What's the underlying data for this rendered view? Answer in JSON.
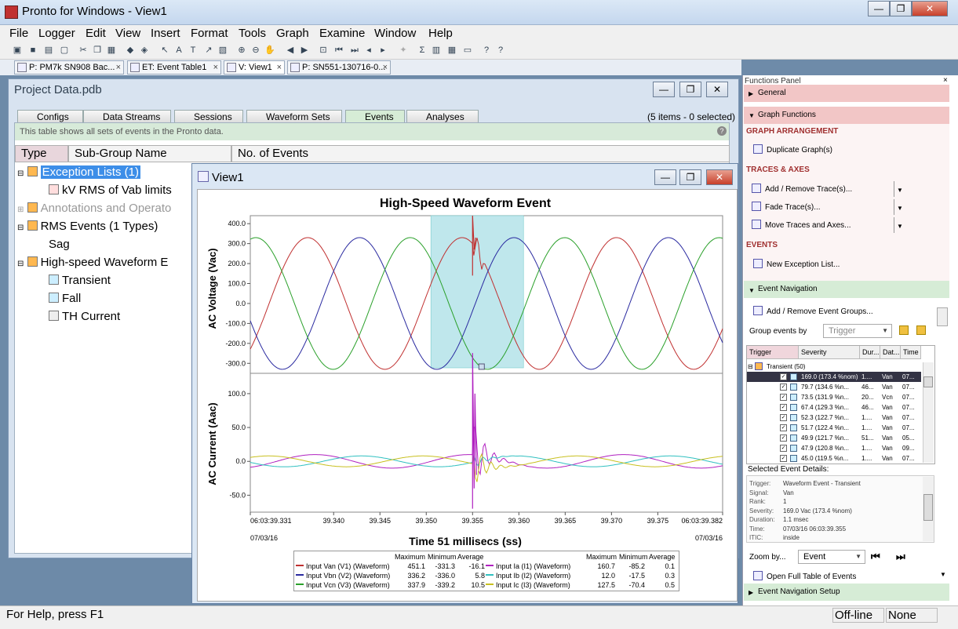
{
  "app": {
    "title": "Pronto for Windows - View1",
    "minimize": "—",
    "maximize": "❐",
    "close": "✕"
  },
  "menu": [
    "File",
    "Logger",
    "Edit",
    "View",
    "Insert",
    "Format",
    "Tools",
    "Graph",
    "Examine",
    "Window",
    "Help"
  ],
  "doc_tabs": [
    {
      "label": "P: PM7k SN908 Bac..."
    },
    {
      "label": "ET: Event Table1"
    },
    {
      "label": "V: View1"
    },
    {
      "label": "P: SN551-130716-0..."
    }
  ],
  "project": {
    "title": "Project Data.pdb",
    "tabs": [
      "Configs",
      "Data Streams",
      "Sessions",
      "Waveform Sets",
      "Events",
      "Analyses"
    ],
    "items_count": "(5 items - 0 selected)",
    "info_text": "This table shows all sets of events in the Pronto data.",
    "columns": [
      "Type",
      "Sub-Group Name",
      "No. of Events"
    ],
    "tree": [
      {
        "label": "Exception Lists (1)",
        "level": 0,
        "selected": true
      },
      {
        "label": "kV RMS of Vab limits",
        "level": 1
      },
      {
        "label": "Annotations and Operato",
        "level": 0,
        "dim": true
      },
      {
        "label": "RMS Events (1 Types)",
        "level": 0
      },
      {
        "label": "Sag",
        "level": 1
      },
      {
        "label": "High-speed Waveform E",
        "level": 0
      },
      {
        "label": "Transient",
        "level": 1
      },
      {
        "label": "Fall",
        "level": 1
      },
      {
        "label": "TH Current",
        "level": 1
      }
    ]
  },
  "view": {
    "title": "View1",
    "chart_title": "High-Speed Waveform Event",
    "x_label": "Time 51 millisecs (ss)",
    "x_ticks": [
      "06:03:39.331",
      "39.340",
      "39.345",
      "39.350",
      "39.355",
      "39.360",
      "39.365",
      "39.370",
      "39.375",
      "06:03:39.382"
    ],
    "x_date_left": "07/03/16",
    "x_date_right": "07/03/16",
    "v_label": "AC Voltage (Vac)",
    "v_ticks": [
      "400.0",
      "300.0",
      "200.0",
      "100.0",
      "0.0",
      "-100.0",
      "-200.0",
      "-300.0"
    ],
    "i_label": "AC Current (Aac)",
    "i_ticks": [
      "100.0",
      "50.0",
      "0.0",
      "-50.0"
    ],
    "legend_header": {
      "max": "Maximum",
      "min": "Minimum",
      "avg": "Average"
    },
    "legend": [
      {
        "name": "Input Van (V1) (Waveform)",
        "max": "451.1",
        "min": "-331.3",
        "avg": "-16.1",
        "color": "#c03030"
      },
      {
        "name": "Input Vbn (V2) (Waveform)",
        "max": "336.2",
        "min": "-336.0",
        "avg": "5.8",
        "color": "#2a2aa0"
      },
      {
        "name": "Input Vcn (V3) (Waveform)",
        "max": "337.9",
        "min": "-339.2",
        "avg": "10.5",
        "color": "#2aa02a"
      },
      {
        "name": "Input Ia (I1) (Waveform)",
        "max": "160.7",
        "min": "-85.2",
        "avg": "0.1",
        "color": "#b020c0"
      },
      {
        "name": "Input Ib (I2) (Waveform)",
        "max": "12.0",
        "min": "-17.5",
        "avg": "0.3",
        "color": "#30c0c0"
      },
      {
        "name": "Input Ic (I3) (Waveform)",
        "max": "127.5",
        "min": "-70.4",
        "avg": "0.5",
        "color": "#c8c020"
      }
    ]
  },
  "chart_data": {
    "type": "line",
    "title": "High-Speed Waveform Event",
    "xlabel": "Time 51 millisecs (ss)",
    "xlim": [
      39.331,
      39.382
    ],
    "event_window": [
      39.3505,
      39.3605
    ],
    "event_time": 39.355,
    "panels": [
      {
        "ylabel": "AC Voltage (Vac)",
        "ylim": [
          -350,
          440
        ],
        "series": [
          {
            "name": "Input Van (V1) (Waveform)",
            "amplitude": 330,
            "period_ms": 16.67,
            "peak_time": 39.3372
          },
          {
            "name": "Input Vbn (V2) (Waveform)",
            "amplitude": 330,
            "period_ms": 16.67,
            "peak_time": 39.3428
          },
          {
            "name": "Input Vcn (V3) (Waveform)",
            "amplitude": 330,
            "period_ms": 16.67,
            "peak_time": 39.3316
          }
        ]
      },
      {
        "ylabel": "AC Current (Aac)",
        "ylim": [
          -75,
          130
        ],
        "series": [
          {
            "name": "Input Ia (I1) (Waveform)",
            "max": 160.7,
            "min": -85.2
          },
          {
            "name": "Input Ib (I2) (Waveform)",
            "max": 12.0,
            "min": -17.5
          },
          {
            "name": "Input Ic (I3) (Waveform)",
            "max": 127.5,
            "min": -70.4
          }
        ]
      }
    ]
  },
  "functions": {
    "title": "Functions Panel",
    "general": "General",
    "graph_functions": "Graph Functions",
    "graph_arrangement": "GRAPH ARRANGEMENT",
    "duplicate": "Duplicate Graph(s)",
    "traces_axes": "TRACES & AXES",
    "add_remove": "Add / Remove Trace(s)...",
    "fade": "Fade Trace(s)...",
    "move": "Move Traces and Axes...",
    "events": "EVENTS",
    "new_exception": "New Exception List...",
    "event_navigation": "Event Navigation",
    "add_remove_groups": "Add / Remove Event Groups...",
    "group_by_label": "Group events by",
    "group_by_value": "Trigger",
    "ev_columns": [
      "Trigger",
      "Severity",
      "Dur...",
      "Dat...",
      "Time"
    ],
    "ev_group": "Transient (50)",
    "ev_rows": [
      {
        "sev": "169.0 (173.4 %nom)",
        "dur": "1....",
        "dat": "Van",
        "time": "07..."
      },
      {
        "sev": "79.7 (134.6 %n...",
        "dur": "46...",
        "dat": "Van",
        "time": "07..."
      },
      {
        "sev": "73.5 (131.9 %n...",
        "dur": "20...",
        "dat": "Vcn",
        "time": "07..."
      },
      {
        "sev": "67.4 (129.3 %n...",
        "dur": "46...",
        "dat": "Van",
        "time": "07..."
      },
      {
        "sev": "52.3 (122.7 %n...",
        "dur": "1....",
        "dat": "Van",
        "time": "07..."
      },
      {
        "sev": "51.7 (122.4 %n...",
        "dur": "1....",
        "dat": "Van",
        "time": "07..."
      },
      {
        "sev": "49.9 (121.7 %n...",
        "dur": "51...",
        "dat": "Van",
        "time": "05..."
      },
      {
        "sev": "47.9 (120.8 %n...",
        "dur": "1....",
        "dat": "Van",
        "time": "09..."
      },
      {
        "sev": "45.0 (119.5 %n...",
        "dur": "1....",
        "dat": "Van",
        "time": "07..."
      }
    ],
    "details_title": "Selected Event Details:",
    "details": [
      {
        "k": "Trigger:",
        "v": "Waveform Event - Transient"
      },
      {
        "k": "Signal:",
        "v": "Van"
      },
      {
        "k": "Rank:",
        "v": "1"
      },
      {
        "k": "Severity:",
        "v": "169.0 Vac (173.4 %nom)"
      },
      {
        "k": "Duration:",
        "v": "1.1 msec"
      },
      {
        "k": "Time:",
        "v": "07/03/16 06:03:39.355"
      },
      {
        "k": "ITIC:",
        "v": "inside"
      }
    ],
    "zoom_label": "Zoom by...",
    "zoom_value": "Event",
    "open_full": "Open Full Table of Events",
    "nav_setup": "Event Navigation Setup"
  },
  "status": {
    "help": "For Help, press F1",
    "mode": "Off-line",
    "extra": "None"
  }
}
